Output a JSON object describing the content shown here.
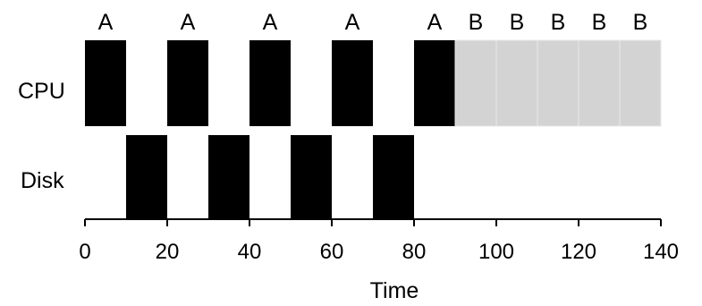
{
  "chart_data": {
    "type": "timeline",
    "x_axis": {
      "label": "Time",
      "range": [
        0,
        150
      ],
      "ticks": [
        0,
        20,
        40,
        60,
        80,
        100,
        120,
        140
      ]
    },
    "rows": [
      {
        "label": "CPU"
      },
      {
        "label": "Disk"
      }
    ],
    "segments": [
      {
        "row": "CPU",
        "task": "A",
        "start": 0,
        "end": 10,
        "label": "A",
        "color": "#000000"
      },
      {
        "row": "CPU",
        "task": "A",
        "start": 20,
        "end": 30,
        "label": "A",
        "color": "#000000"
      },
      {
        "row": "CPU",
        "task": "A",
        "start": 40,
        "end": 50,
        "label": "A",
        "color": "#000000"
      },
      {
        "row": "CPU",
        "task": "A",
        "start": 60,
        "end": 70,
        "label": "A",
        "color": "#000000"
      },
      {
        "row": "CPU",
        "task": "A",
        "start": 80,
        "end": 90,
        "label": "A",
        "color": "#000000"
      },
      {
        "row": "CPU",
        "task": "B",
        "start": 90,
        "end": 100,
        "label": "B",
        "color": "#d3d3d3"
      },
      {
        "row": "CPU",
        "task": "B",
        "start": 100,
        "end": 110,
        "label": "B",
        "color": "#d3d3d3"
      },
      {
        "row": "CPU",
        "task": "B",
        "start": 110,
        "end": 120,
        "label": "B",
        "color": "#d3d3d3"
      },
      {
        "row": "CPU",
        "task": "B",
        "start": 120,
        "end": 130,
        "label": "B",
        "color": "#d3d3d3"
      },
      {
        "row": "CPU",
        "task": "B",
        "start": 130,
        "end": 140,
        "label": "B",
        "color": "#d3d3d3"
      },
      {
        "row": "Disk",
        "task": "A",
        "start": 10,
        "end": 20,
        "color": "#000000"
      },
      {
        "row": "Disk",
        "task": "A",
        "start": 30,
        "end": 40,
        "color": "#000000"
      },
      {
        "row": "Disk",
        "task": "A",
        "start": 50,
        "end": 60,
        "color": "#000000"
      },
      {
        "row": "Disk",
        "task": "A",
        "start": 70,
        "end": 80,
        "color": "#000000"
      }
    ]
  }
}
